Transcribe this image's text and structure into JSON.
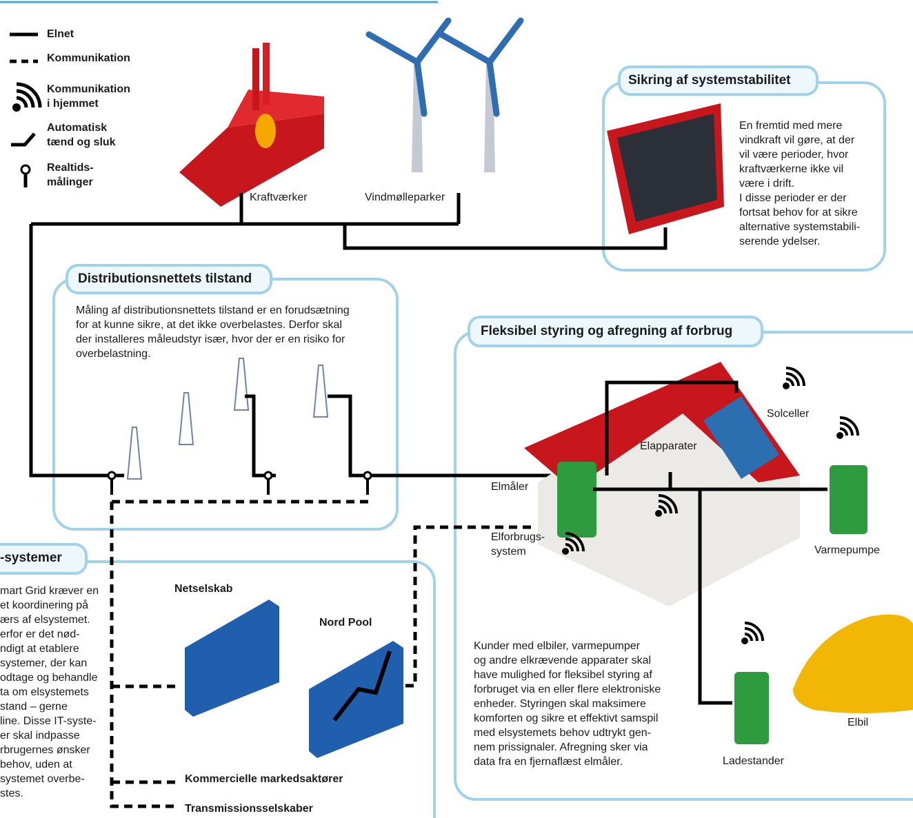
{
  "legend": [
    [
      "Elnet"
    ],
    [
      "Kommunikation"
    ],
    [
      "Kommunikation",
      "i hjemmet"
    ],
    [
      "Automatisk",
      "tænd og sluk"
    ],
    [
      "Realtids-",
      "målinger"
    ]
  ],
  "sources": {
    "power_plant": "Kraftværker",
    "wind_farms": "Vindmølleparker"
  },
  "stability": {
    "title": "Sikring af systemstabilitet",
    "text": [
      "En fremtid med mere",
      "vindkraft vil gøre, at der",
      "vil være perioder, hvor",
      "kraftværkerne ikke vil",
      "være i drift.",
      "I disse perioder er der",
      "fortsat behov for at sikre",
      "alternative systemstabili-",
      "serende ydelser."
    ]
  },
  "distribution": {
    "title": "Distributionsnettets tilstand",
    "text": [
      "Måling af distributionsnettets tilstand er en forudsætning",
      "for at kunne sikre, at det ikke overbelastes. Derfor skal",
      "der installeres måleudstyr især, hvor der er en risiko for",
      "overbelastning."
    ]
  },
  "flexible": {
    "title": "Fleksibel styring og afregning af forbrug",
    "labels": {
      "solar": "Solceller",
      "appliances": "Elapparater",
      "meter": "Elmåler",
      "consumption_system": [
        "Elforbrugs-",
        "system"
      ],
      "heat_pump": "Varmepumpe",
      "charger": "Ladestander",
      "ev": "Elbil"
    },
    "text": [
      "Kunder med elbiler, varmepumper",
      "og andre elkrævende apparater skal",
      "have mulighed for fleksibel styring af",
      "forbruget via en eller flere elektroniske",
      "enheder. Styringen skal maksimere",
      "komforten og sikre et effektivt samspil",
      "med elsystemets behov udtrykt gen-",
      "nem prissignaler. Afregning sker via",
      "data fra en fjernaflæst elmåler."
    ]
  },
  "it_systems": {
    "title": "-systemer",
    "text": [
      "mart Grid kræver en",
      "et koordinering på",
      "ærs af elsystemet.",
      "erfor er det nød-",
      "ndigt at etablere",
      "systemer, der kan",
      "odtage og behandle",
      "ta om elsystemets",
      "stand – gerne",
      "line. Disse IT-syste-",
      "er skal indpasse",
      "rbrugernes ønsker",
      "behov, uden at",
      "systemet overbe-",
      "stes."
    ],
    "labels": {
      "dso": "Netselskab",
      "nord_pool": "Nord Pool",
      "market": "Kommercielle markedsaktører",
      "tso": "Transmissionsselskaber"
    }
  }
}
